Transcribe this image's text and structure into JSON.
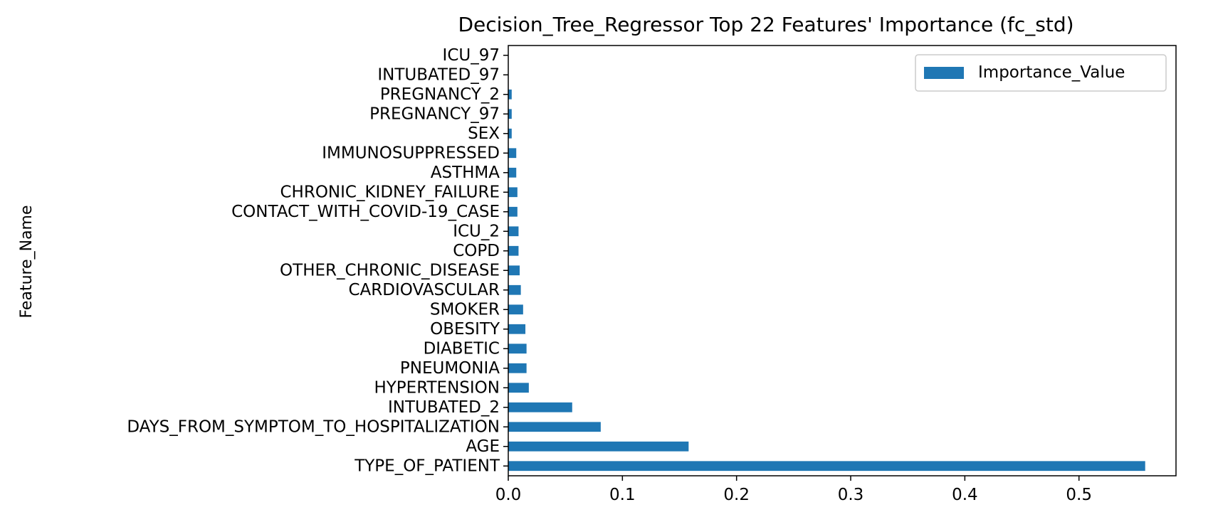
{
  "chart_data": {
    "type": "bar",
    "orientation": "horizontal",
    "title": "Decision_Tree_Regressor Top 22 Features' Importance (fc_std)",
    "xlabel": "",
    "ylabel": "Feature_Name",
    "xlim": [
      0,
      0.585
    ],
    "xticks": [
      "0.0",
      "0.1",
      "0.2",
      "0.3",
      "0.4",
      "0.5"
    ],
    "grid": false,
    "legend_position": "top-right",
    "categories": [
      "TYPE_OF_PATIENT",
      "AGE",
      "DAYS_FROM_SYMPTOM_TO_HOSPITALIZATION",
      "INTUBATED_2",
      "HYPERTENSION",
      "PNEUMONIA",
      "DIABETIC",
      "OBESITY",
      "SMOKER",
      "CARDIOVASCULAR",
      "OTHER_CHRONIC_DISEASE",
      "COPD",
      "ICU_2",
      "CONTACT_WITH_COVID-19_CASE",
      "CHRONIC_KIDNEY_FAILURE",
      "ASTHMA",
      "IMMUNOSUPPRESSED",
      "SEX",
      "PREGNANCY_97",
      "PREGNANCY_2",
      "INTUBATED_97",
      "ICU_97"
    ],
    "series": [
      {
        "name": "Importance_Value",
        "color": "#1f77b4",
        "values": [
          0.558,
          0.158,
          0.081,
          0.056,
          0.018,
          0.016,
          0.016,
          0.015,
          0.013,
          0.011,
          0.01,
          0.009,
          0.009,
          0.008,
          0.008,
          0.007,
          0.007,
          0.003,
          0.003,
          0.003,
          0.0,
          0.0
        ]
      }
    ]
  }
}
